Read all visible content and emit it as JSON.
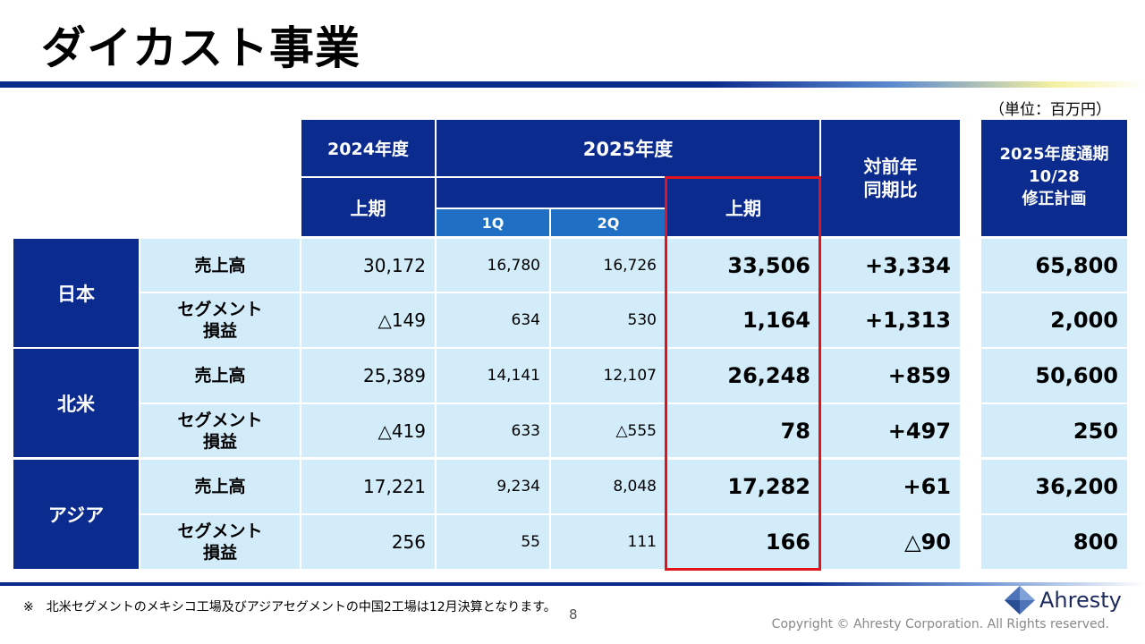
{
  "title": "ダイカスト事業",
  "unit_note": "（単位：百万円）",
  "headers": {
    "fy2024": "2024年度",
    "fy2025": "2025年度",
    "h1_2024": "上期",
    "q1": "1Q",
    "q2": "2Q",
    "h1_2025": "上期",
    "yoy": "対前年\n同期比",
    "plan": "2025年度通期\n10/28\n修正計画"
  },
  "regions": [
    {
      "name": "日本",
      "rows": [
        {
          "label": "売上高",
          "h1_2024": "30,172",
          "q1": "16,780",
          "q2": "16,726",
          "h1_2025": "33,506",
          "yoy": "+3,334",
          "plan": "65,800"
        },
        {
          "label": "セグメント\n損益",
          "h1_2024": "△149",
          "q1": "634",
          "q2": "530",
          "h1_2025": "1,164",
          "yoy": "+1,313",
          "plan": "2,000"
        }
      ]
    },
    {
      "name": "北米",
      "rows": [
        {
          "label": "売上高",
          "h1_2024": "25,389",
          "q1": "14,141",
          "q2": "12,107",
          "h1_2025": "26,248",
          "yoy": "+859",
          "plan": "50,600"
        },
        {
          "label": "セグメント\n損益",
          "h1_2024": "△419",
          "q1": "633",
          "q2": "△555",
          "h1_2025": "78",
          "yoy": "+497",
          "plan": "250"
        }
      ]
    },
    {
      "name": "アジア",
      "rows": [
        {
          "label": "売上高",
          "h1_2024": "17,221",
          "q1": "9,234",
          "q2": "8,048",
          "h1_2025": "17,282",
          "yoy": "+61",
          "plan": "36,200"
        },
        {
          "label": "セグメント\n損益",
          "h1_2024": "256",
          "q1": "55",
          "q2": "111",
          "h1_2025": "166",
          "yoy": "△90",
          "plan": "800"
        }
      ]
    }
  ],
  "footnote": "※　北米セグメントのメキシコ工場及びアジアセグメントの中国2工場は12月決算となります。",
  "page_number": "8",
  "copyright": "Copyright © Ahresty Corporation. All Rights reserved.",
  "logo_text": "Ahresty",
  "colors": {
    "header": "#0b2b8e",
    "subheader": "#1f6fc4",
    "cell": "#d2ecfa",
    "highlight": "#e1141e"
  }
}
